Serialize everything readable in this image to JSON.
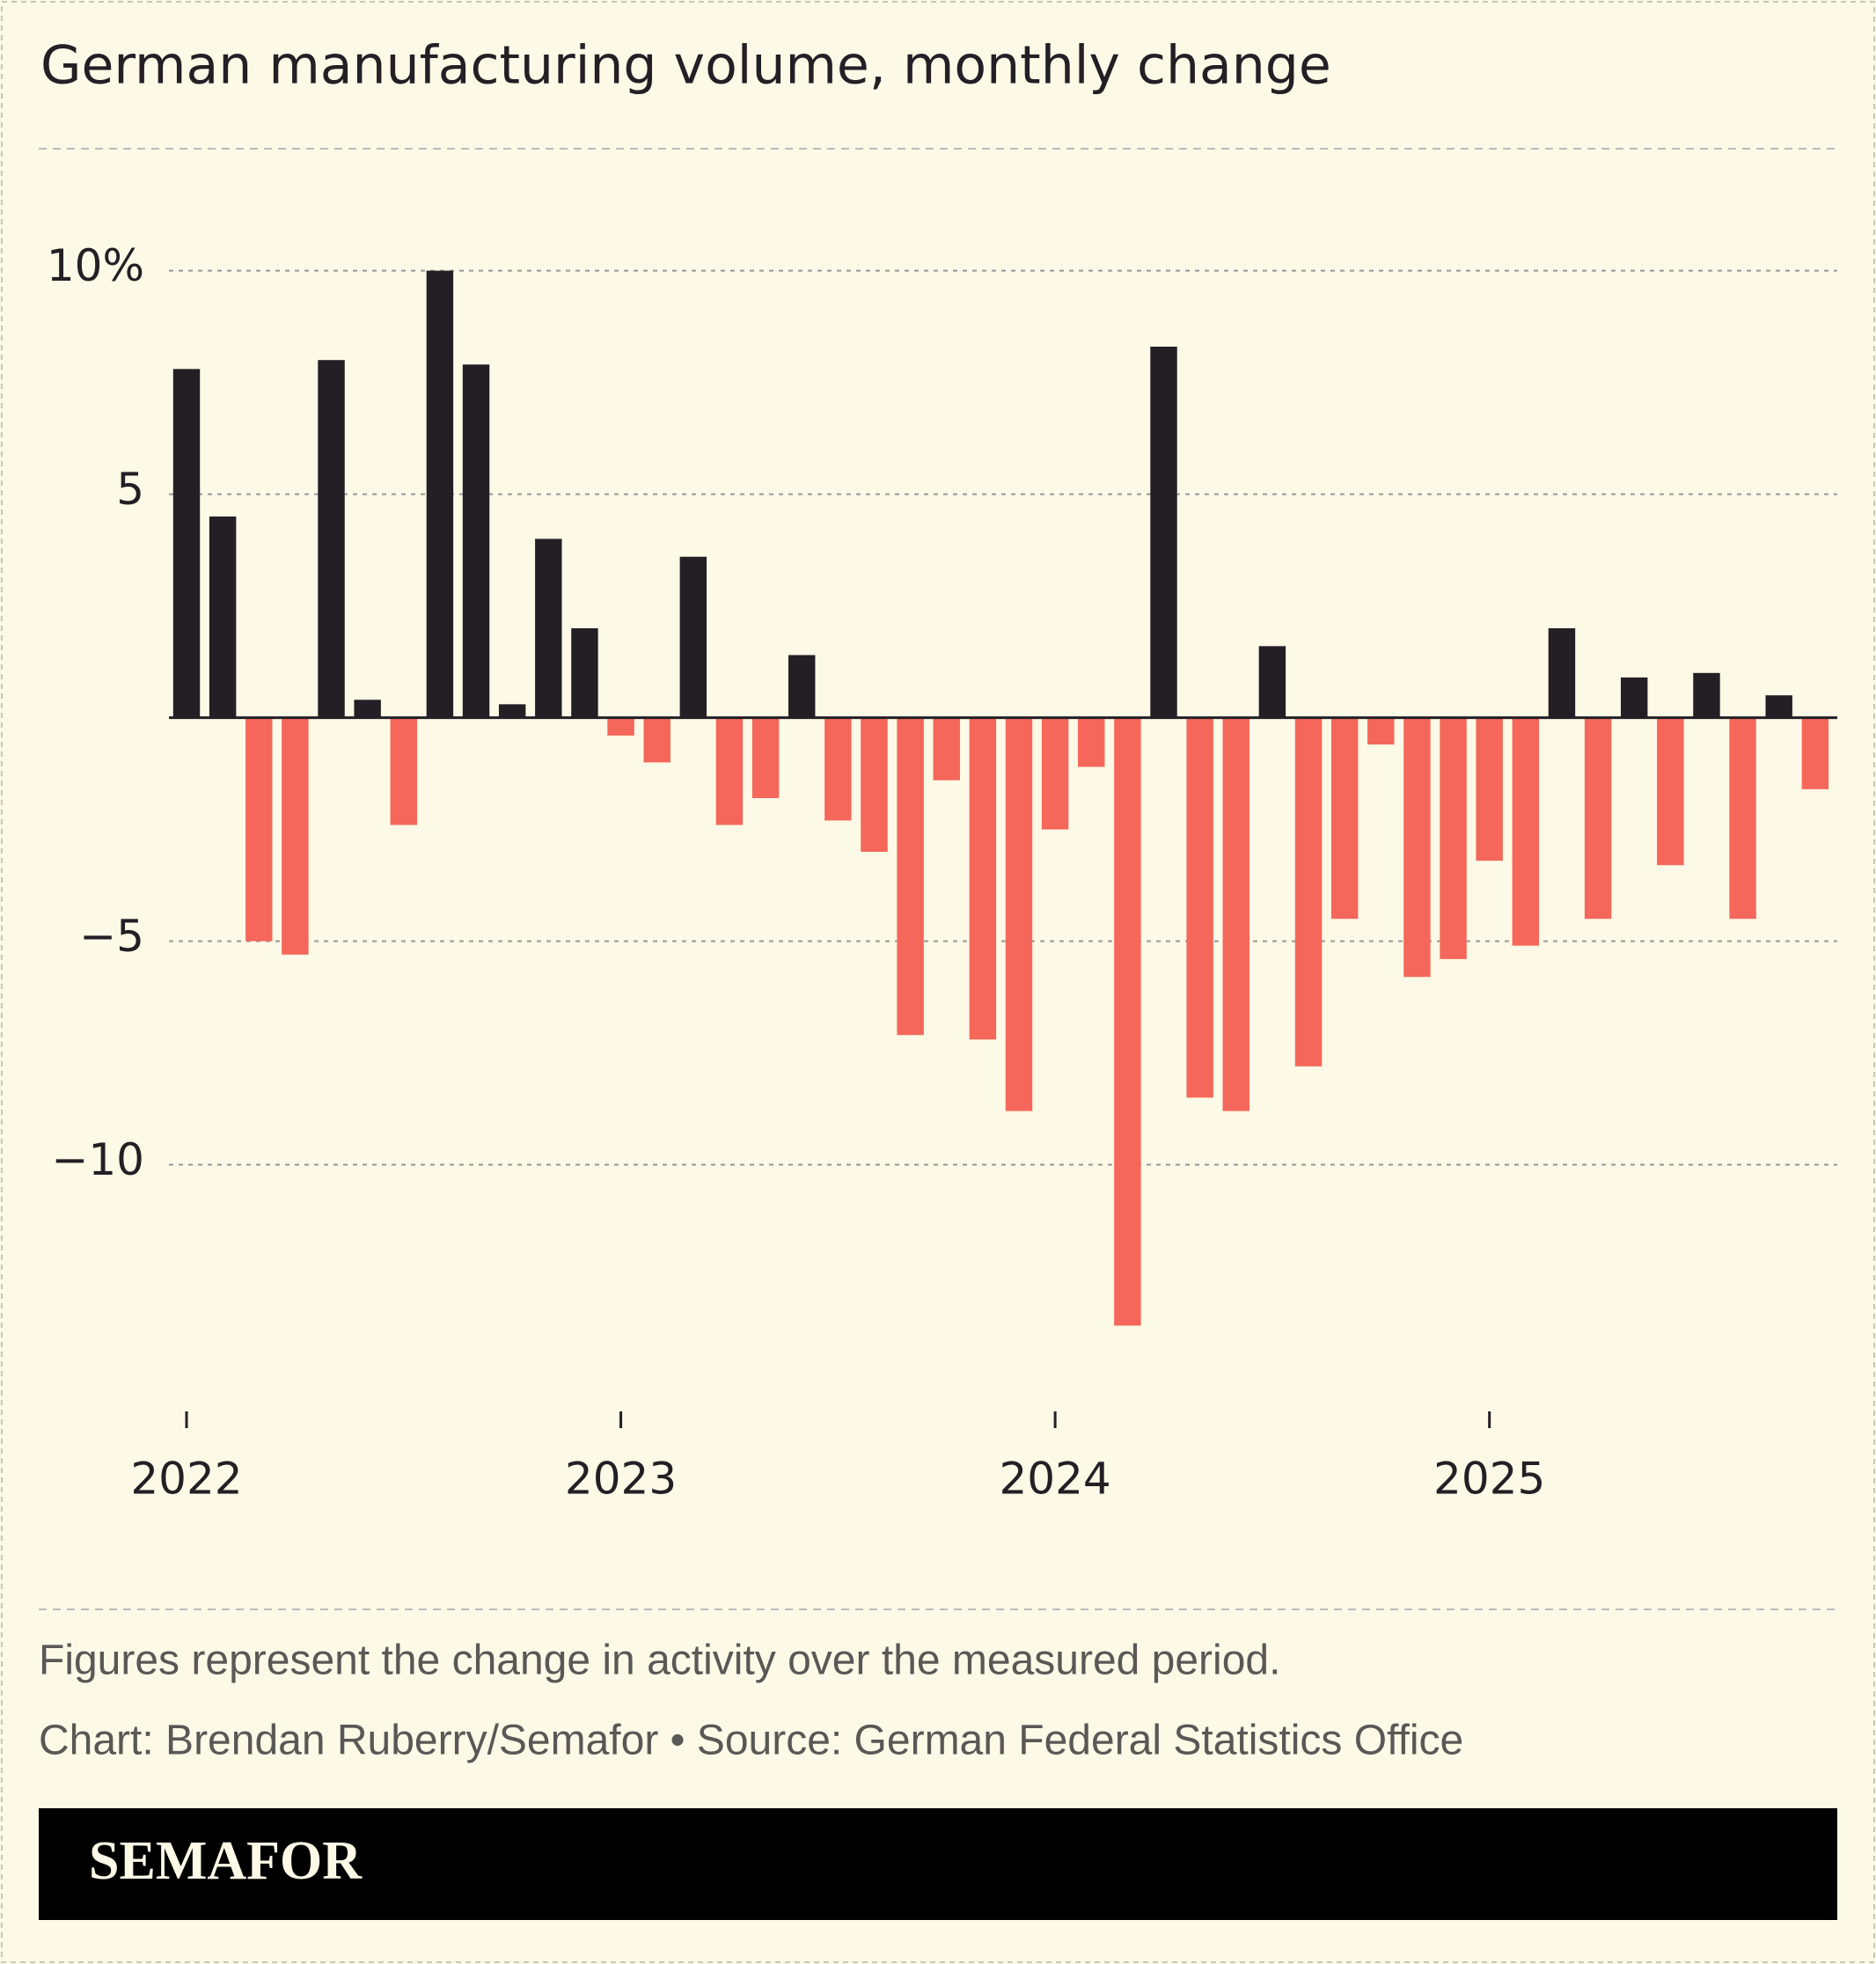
{
  "chart_data": {
    "type": "bar",
    "title": "German manufacturing volume, monthly change",
    "categories": [
      "2022",
      null,
      null,
      null,
      null,
      null,
      null,
      null,
      null,
      null,
      null,
      null,
      "2023",
      null,
      null,
      null,
      null,
      null,
      null,
      null,
      null,
      null,
      null,
      null,
      "2024",
      null,
      null,
      null,
      null,
      null,
      null,
      null,
      null,
      null,
      null,
      null,
      "2025",
      null,
      null,
      null,
      null,
      null,
      null,
      null,
      null,
      null
    ],
    "values": [
      7.8,
      4.5,
      -5.0,
      -5.3,
      8.0,
      0.4,
      -2.4,
      10.0,
      7.9,
      0.3,
      4.0,
      2.0,
      -0.4,
      -1.0,
      3.6,
      -2.4,
      -1.8,
      1.4,
      -2.3,
      -3.0,
      -7.1,
      -1.4,
      -7.2,
      -8.8,
      -2.5,
      -1.1,
      -13.6,
      8.3,
      -8.5,
      -8.8,
      1.6,
      -7.8,
      -4.5,
      -0.6,
      -5.8,
      -5.4,
      -3.2,
      -5.1,
      2.0,
      -4.5,
      0.9,
      -3.3,
      1.0,
      -4.5,
      0.5,
      -1.6
    ],
    "color": "#231f25",
    "negative_color": "#f5675a",
    "ylim": [
      -14,
      10
    ],
    "yticks": [
      {
        "value": 10,
        "label": "10%"
      },
      5,
      {
        "value": -5,
        "label": "−5"
      },
      {
        "value": -10,
        "label": "−10"
      }
    ],
    "grid": true,
    "note": "Figures represent the change in activity over the measured period.",
    "credit": "Chart: Brendan Ruberry/Semafor • Source: German Federal Statistics Office",
    "brand": "SEMAFOR"
  }
}
